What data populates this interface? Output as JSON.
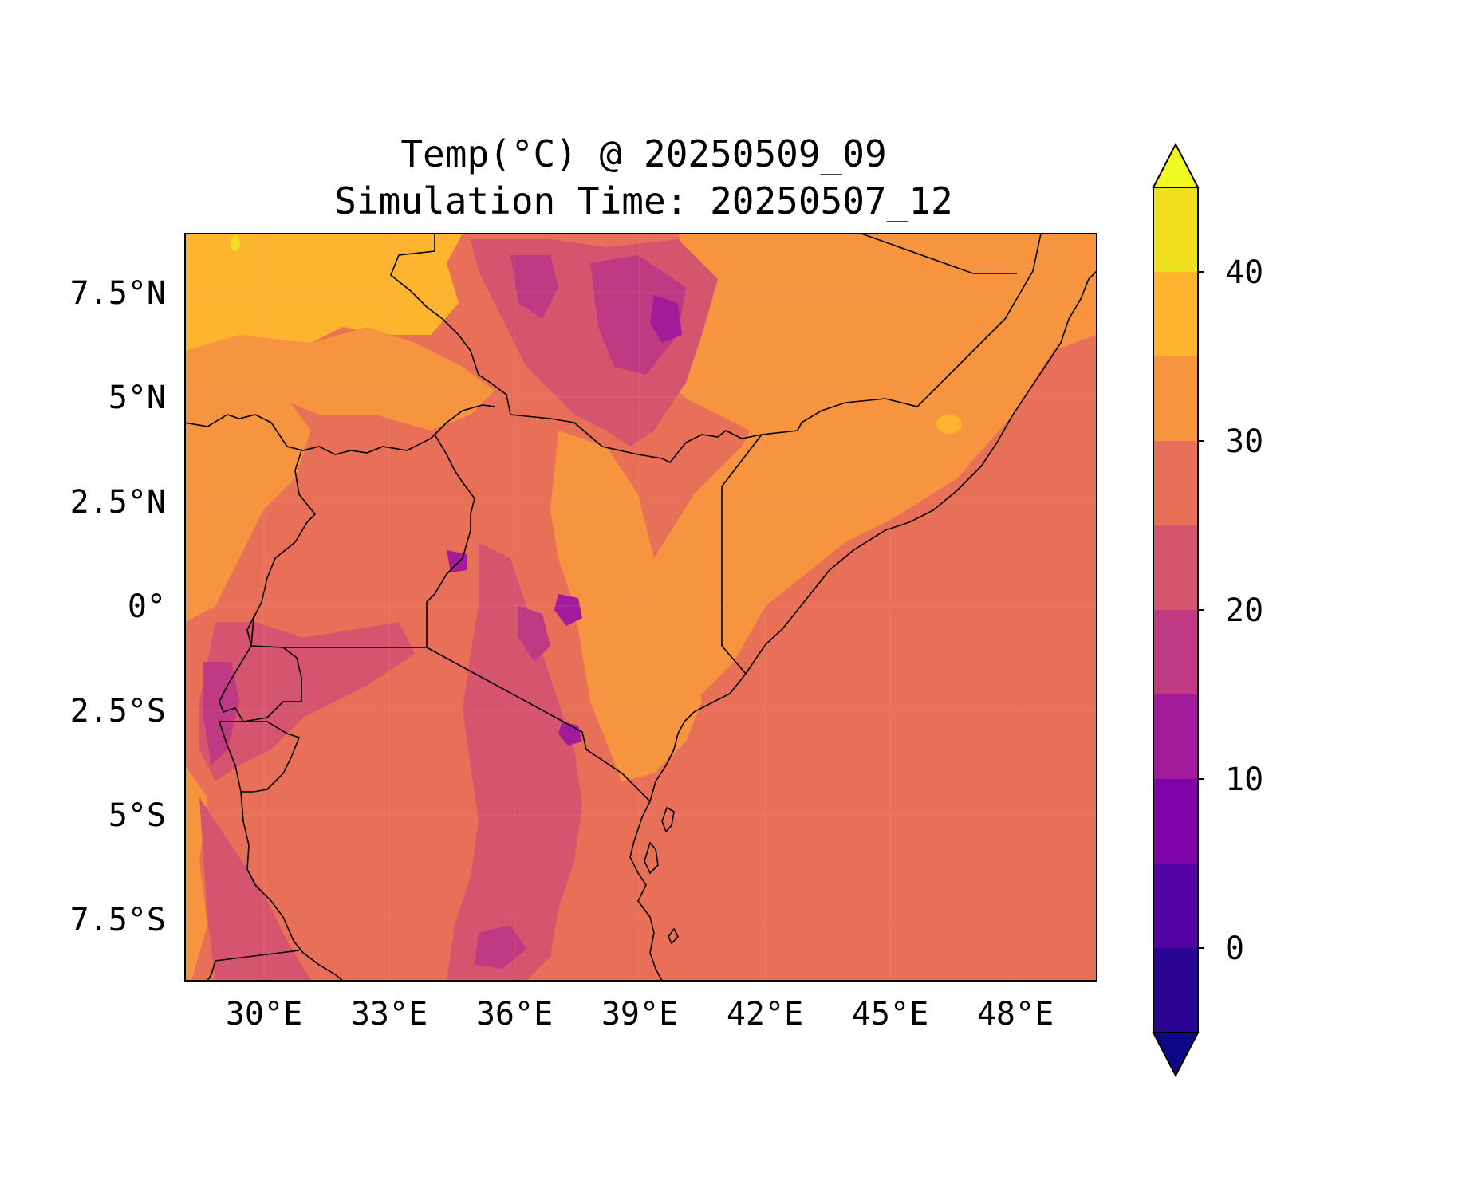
{
  "title": {
    "line1": "Temp(°C) @ 20250509_09",
    "line2": "Simulation Time: 20250507_12"
  },
  "map": {
    "variable": "Temperature",
    "unit": "°C",
    "valid_time": "20250509_09",
    "simulation_time": "20250507_12",
    "lon_ticks": [
      "30°E",
      "33°E",
      "36°E",
      "39°E",
      "42°E",
      "45°E",
      "48°E"
    ],
    "lat_ticks": [
      "7.5°N",
      "5°N",
      "2.5°N",
      "0°",
      "2.5°S",
      "5°S",
      "7.5°S"
    ],
    "region": "East Africa (Uganda, Kenya, Tanzania, Ethiopia, Somalia)"
  },
  "colorbar": {
    "ticks": [
      "40",
      "30",
      "20",
      "10",
      "0"
    ],
    "levels": [
      -5,
      0,
      5,
      10,
      15,
      20,
      25,
      30,
      35,
      40,
      45
    ],
    "colors": {
      "below": "#0d0887",
      "band_-5_0": "#2a0593",
      "band_0_5": "#5302a3",
      "band_5_10": "#7e03a8",
      "band_10_15": "#a11b9b",
      "band_15_20": "#c03a83",
      "band_20_25": "#d5546e",
      "band_25_30": "#e97058",
      "band_30_35": "#f79440",
      "band_35_40": "#fdb42f",
      "band_40_45": "#f0e020",
      "above": "#f0f921"
    }
  }
}
